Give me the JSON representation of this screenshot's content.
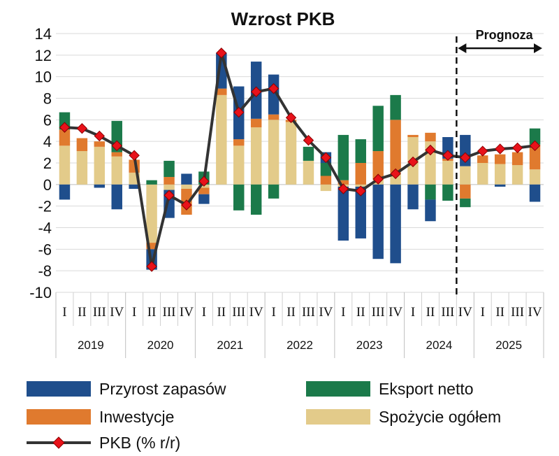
{
  "chart_data": {
    "type": "bar",
    "title": "Wzrost PKB",
    "years": [
      "2019",
      "2020",
      "2021",
      "2022",
      "2023",
      "2024",
      "2025"
    ],
    "quarters": [
      "I",
      "II",
      "III",
      "IV"
    ],
    "ylim": [
      -10,
      14
    ],
    "yticks": [
      14,
      12,
      10,
      8,
      6,
      4,
      2,
      0,
      -2,
      -4,
      -6,
      -8,
      -10
    ],
    "grid": true,
    "forecast_label": "Prognoza",
    "forecast_start_index": 23,
    "series": [
      {
        "name": "Spożycie ogółem",
        "color": "#E3CB8A",
        "values": [
          3.6,
          3.1,
          3.5,
          2.6,
          1.1,
          -5.4,
          -0.5,
          -0.4,
          -0.3,
          8.3,
          3.6,
          5.3,
          6.0,
          5.8,
          2.2,
          -0.6,
          -0.2,
          -0.2,
          0.5,
          1.1,
          4.4,
          4.0,
          2.2,
          1.7,
          2.0,
          1.9,
          1.8,
          1.4
        ]
      },
      {
        "name": "Inwestycje",
        "color": "#E07A2E",
        "values": [
          1.5,
          1.2,
          0.5,
          0.4,
          1.2,
          -0.6,
          0.7,
          -2.4,
          -0.6,
          0.6,
          0.6,
          0.8,
          0.5,
          0.2,
          0.0,
          0.8,
          0.4,
          2.0,
          2.6,
          4.9,
          0.2,
          0.8,
          0.2,
          -1.3,
          0.7,
          0.9,
          1.2,
          2.3
        ]
      },
      {
        "name": "Eksport netto",
        "color": "#1B7A4A",
        "values": [
          1.6,
          0.0,
          0.0,
          2.9,
          0.0,
          0.4,
          1.5,
          0.0,
          1.2,
          0.0,
          -2.4,
          -2.8,
          -1.3,
          0.0,
          1.3,
          1.2,
          4.2,
          2.2,
          4.2,
          2.3,
          0.0,
          -1.4,
          -1.5,
          -0.8,
          0.0,
          0.0,
          0.0,
          1.5
        ]
      },
      {
        "name": "Przyrost zapasów",
        "color": "#1F4E8C",
        "values": [
          -1.4,
          0.0,
          -0.3,
          -2.3,
          -0.4,
          -1.9,
          -2.6,
          1.0,
          -0.9,
          3.3,
          4.9,
          5.3,
          3.7,
          0.0,
          0.0,
          1.0,
          -5.0,
          -4.8,
          -6.9,
          -7.3,
          -2.3,
          -2.0,
          2.0,
          2.9,
          0.0,
          -0.2,
          0.0,
          -1.6
        ]
      }
    ],
    "line": {
      "name": "PKB (% r/r)",
      "color": "#333333",
      "marker_color": "#E8121A",
      "values": [
        5.3,
        5.2,
        4.5,
        3.6,
        2.7,
        -7.6,
        -1.0,
        -1.9,
        0.3,
        12.2,
        6.7,
        8.6,
        8.9,
        6.2,
        4.1,
        2.5,
        -0.4,
        -0.6,
        0.5,
        1.0,
        2.1,
        3.2,
        2.7,
        2.5,
        3.1,
        3.3,
        3.4,
        3.6
      ]
    },
    "legend": [
      {
        "name": "Przyrost zapasów",
        "kind": "bar",
        "color": "#1F4E8C"
      },
      {
        "name": "Eksport netto",
        "kind": "bar",
        "color": "#1B7A4A"
      },
      {
        "name": "Inwestycje",
        "kind": "bar",
        "color": "#E07A2E"
      },
      {
        "name": "Spożycie ogółem",
        "kind": "bar",
        "color": "#E3CB8A"
      },
      {
        "name": "PKB (% r/r)",
        "kind": "line",
        "color": "#333333",
        "marker_color": "#E8121A"
      }
    ],
    "legend_position": "bottom"
  }
}
